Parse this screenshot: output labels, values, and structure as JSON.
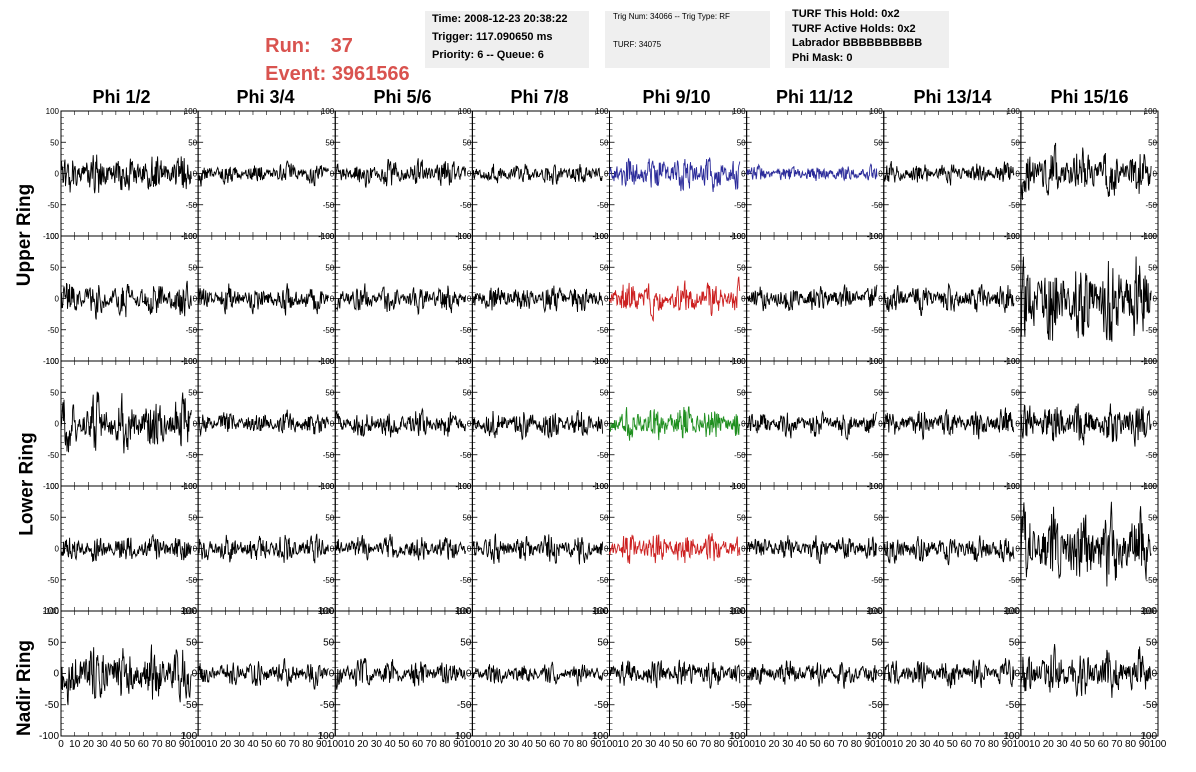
{
  "header": {
    "run_label": "Run:",
    "run_value": "37",
    "event_label": "Event:",
    "event_value": "3961566"
  },
  "info_box_1": {
    "time": "Time: 2008-12-23 20:38:22",
    "trigger": "Trigger: 117.090650 ms",
    "priority": "Priority: 6 -- Queue: 6"
  },
  "info_box_2": {
    "trig_num": "Trig Num: 34066 -- Trig Type: RF",
    "turf": "TURF: 34075"
  },
  "info_box_3": {
    "this_hold": "TURF This Hold: 0x2",
    "active_holds": "TURF Active Holds: 0x2",
    "labrador": "Labrador BBBBBBBBBB",
    "phi_mask": "Phi Mask: 0"
  },
  "colors": {
    "trace_default": "#000000",
    "trace_blue": "#2b2b9a",
    "trace_red": "#cc2020",
    "trace_green": "#1f8f1f",
    "info_box_bg": "#efefef",
    "run_text": "#d9534f"
  },
  "row_labels": [
    "Upper Ring",
    "Lower Ring",
    "Nadir Ring"
  ],
  "chart_data": {
    "type": "line",
    "columns": [
      "Phi 1/2",
      "Phi 3/4",
      "Phi 5/6",
      "Phi 7/8",
      "Phi 9/10",
      "Phi 11/12",
      "Phi 13/14",
      "Phi 15/16"
    ],
    "rows": [
      "Upper Ring (1)",
      "Upper Ring (2)",
      "Lower Ring (1)",
      "Lower Ring (2)",
      "Nadir Ring"
    ],
    "ylim": [
      -100,
      100
    ],
    "xlim": [
      0,
      100
    ],
    "y_ticks": [
      -100,
      -50,
      0,
      50,
      100
    ],
    "x_ticks": [
      0,
      10,
      20,
      30,
      40,
      50,
      60,
      70,
      80,
      90,
      100
    ],
    "trace_x_range": [
      0,
      95
    ],
    "samples_per_trace": 260,
    "typical_amplitude": [
      [
        30,
        15,
        20,
        15,
        25,
        12,
        15,
        35
      ],
      [
        25,
        20,
        20,
        20,
        25,
        18,
        20,
        60
      ],
      [
        40,
        18,
        20,
        20,
        25,
        18,
        20,
        30
      ],
      [
        20,
        20,
        18,
        20,
        22,
        18,
        20,
        55
      ],
      [
        40,
        18,
        20,
        15,
        20,
        18,
        20,
        35
      ]
    ],
    "trace_colors": [
      [
        "trace_default",
        "trace_default",
        "trace_default",
        "trace_default",
        "trace_blue",
        "trace_blue",
        "trace_default",
        "trace_default"
      ],
      [
        "trace_default",
        "trace_default",
        "trace_default",
        "trace_default",
        "trace_red",
        "trace_default",
        "trace_default",
        "trace_default"
      ],
      [
        "trace_default",
        "trace_default",
        "trace_default",
        "trace_default",
        "trace_green",
        "trace_default",
        "trace_default",
        "trace_default"
      ],
      [
        "trace_default",
        "trace_default",
        "trace_default",
        "trace_default",
        "trace_red",
        "trace_default",
        "trace_default",
        "trace_default"
      ],
      [
        "trace_default",
        "trace_default",
        "trace_default",
        "trace_default",
        "trace_default",
        "trace_default",
        "trace_default",
        "trace_default"
      ]
    ],
    "grid": false
  }
}
